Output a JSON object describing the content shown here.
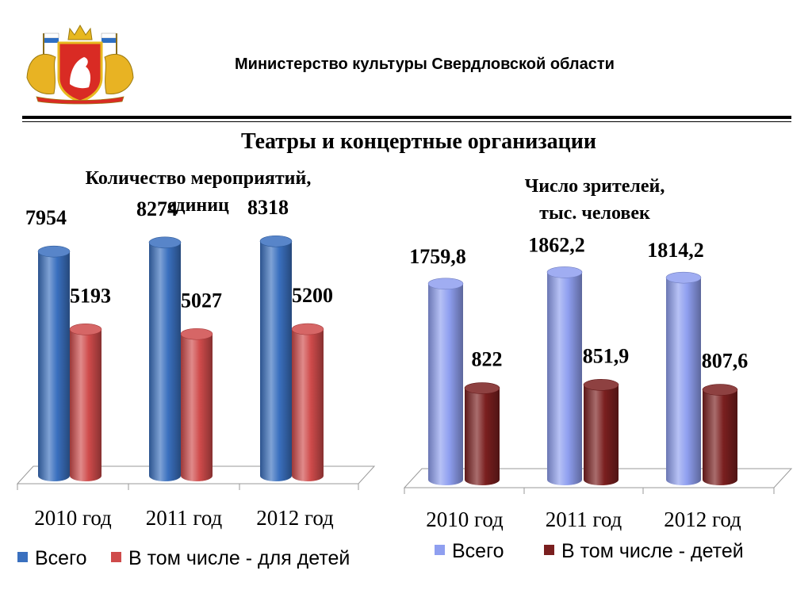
{
  "header": {
    "ministry": "Министерство культуры Свердловской области",
    "title": "Театры и концертные организации"
  },
  "chart_data": [
    {
      "type": "bar",
      "title": "Количество мероприятий,\nединиц",
      "categories": [
        "2010 год",
        "2011 год",
        "2012 год"
      ],
      "series": [
        {
          "name": "Всего",
          "values": [
            7954,
            8274,
            8318
          ],
          "labels": [
            "7954",
            "8274",
            "8318"
          ],
          "color": "#3a70bf"
        },
        {
          "name": "В том числе - для детей",
          "values": [
            5193,
            5027,
            5200
          ],
          "labels": [
            "5193",
            "5027",
            "5200"
          ],
          "color": "#cf4b4b"
        }
      ],
      "ylim": [
        0,
        9000
      ],
      "legend": "bottom",
      "grid": false
    },
    {
      "type": "bar",
      "title": "Число зрителей,\nтыс. человек",
      "categories": [
        "2010 год",
        "2011 год",
        "2012 год"
      ],
      "series": [
        {
          "name": "Всего",
          "values": [
            1759.8,
            1862.2,
            1814.2
          ],
          "labels": [
            "1759,8",
            "1862,2",
            "1814,2"
          ],
          "color": "#8f9ff0"
        },
        {
          "name": "В том числе - детей",
          "values": [
            822,
            851.9,
            807.6
          ],
          "labels": [
            "822",
            "851,9",
            "807,6"
          ],
          "color": "#7a1f1f"
        }
      ],
      "ylim": [
        0,
        2100
      ],
      "legend": "bottom",
      "grid": false
    }
  ]
}
